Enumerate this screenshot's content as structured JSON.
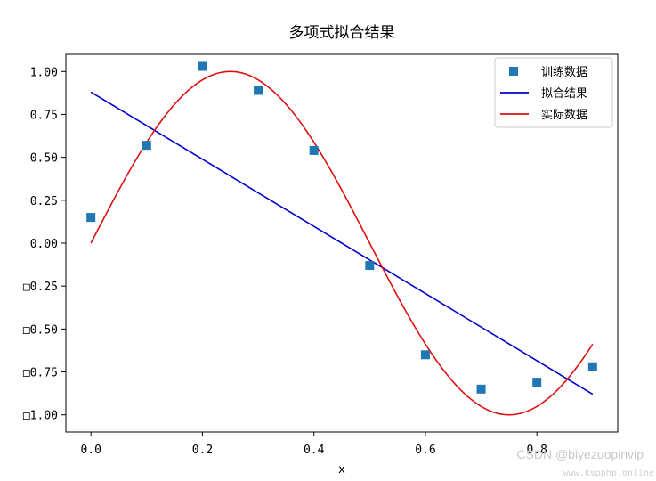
{
  "chart_data": {
    "type": "line",
    "title": "多项式拟合结果",
    "xlabel": "x",
    "ylabel": "",
    "xlim": [
      -0.045,
      0.945
    ],
    "ylim": [
      -1.1,
      1.1
    ],
    "x_ticks": [
      0.0,
      0.2,
      0.4,
      0.6,
      0.8
    ],
    "x_tick_labels": [
      "0.0",
      "0.2",
      "0.4",
      "0.6",
      "0.8"
    ],
    "y_ticks": [
      1.0,
      0.75,
      0.5,
      0.25,
      0.0,
      -0.25,
      -0.5,
      -0.75,
      -1.0
    ],
    "y_tick_labels": [
      "1.00",
      "0.75",
      "0.50",
      "0.25",
      "0.00",
      "□0.25",
      "□0.50",
      "□0.75",
      "□1.00"
    ],
    "legend_position": "top-right",
    "grid": false,
    "series": [
      {
        "name": "训练数据",
        "style": "markers",
        "color": "#1f77b4",
        "x": [
          0.0,
          0.1,
          0.2,
          0.3,
          0.4,
          0.5,
          0.6,
          0.7,
          0.8,
          0.9
        ],
        "y": [
          0.15,
          0.57,
          1.03,
          0.89,
          0.54,
          -0.13,
          -0.65,
          -0.85,
          -0.81,
          -0.72
        ]
      },
      {
        "name": "拟合结果",
        "style": "line",
        "color": "#0000cc",
        "x": [
          0.0,
          0.9
        ],
        "y": [
          0.88,
          -0.88
        ]
      },
      {
        "name": "实际数据",
        "style": "line",
        "color": "#dd1111",
        "function": "sin(2*pi*x)",
        "x_range": [
          0.0,
          0.9
        ]
      }
    ]
  },
  "watermark": {
    "text": "CSDN @biyezuopinvip",
    "subtext": "www.kspphp.online"
  }
}
